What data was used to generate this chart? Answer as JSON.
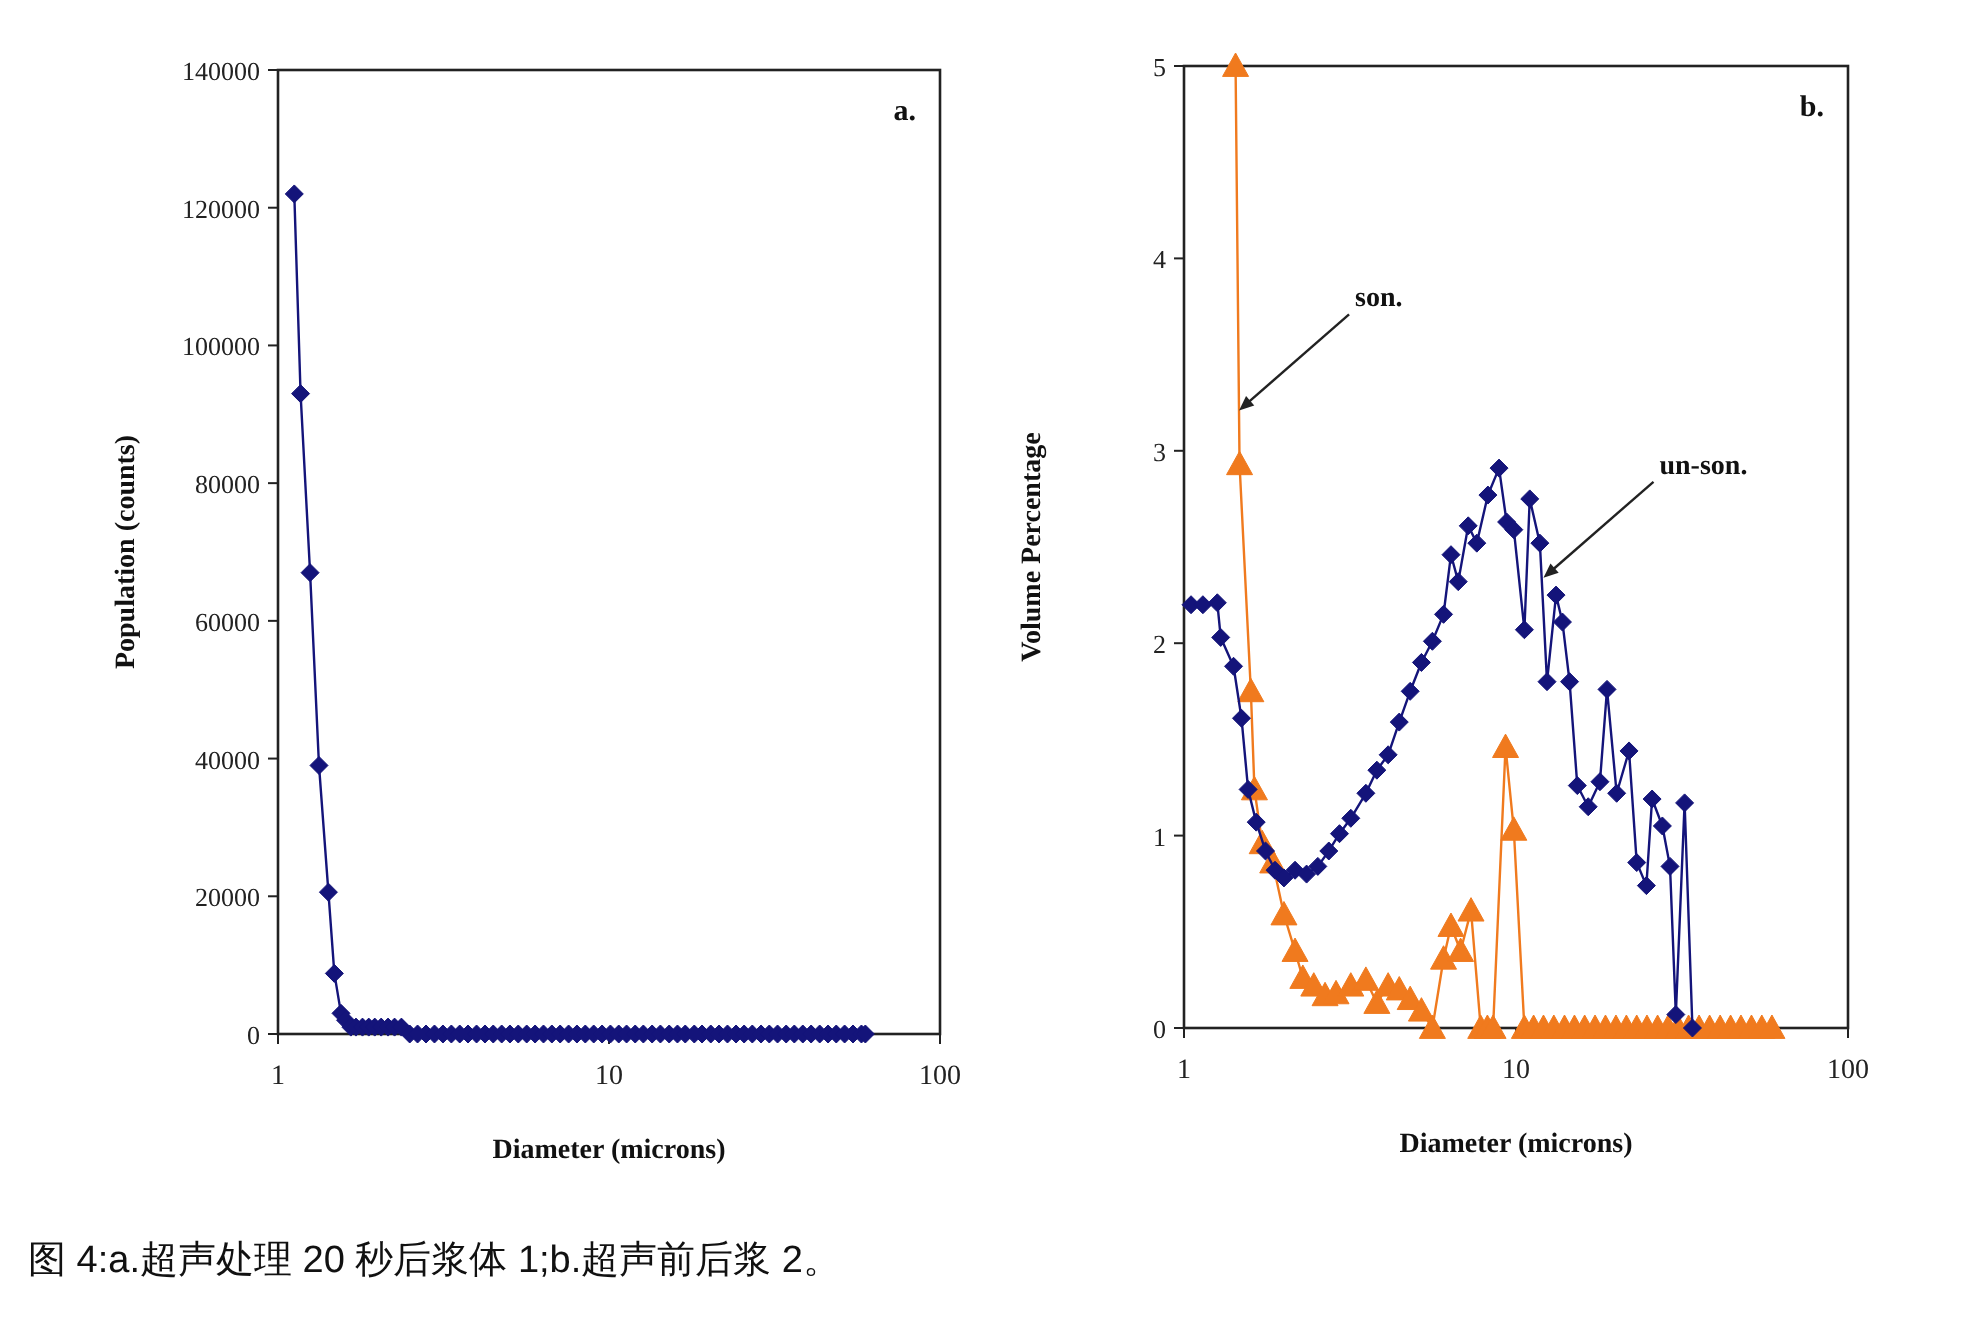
{
  "chart_data": [
    {
      "type": "line",
      "title": "a.",
      "xlabel": "Diameter (microns)",
      "ylabel": "Population (counts)",
      "log": "x",
      "xlim": [
        1,
        100
      ],
      "xticks": [
        1,
        10,
        100
      ],
      "ylim": [
        0,
        140000
      ],
      "yticks": [
        0,
        20000,
        40000,
        60000,
        80000,
        100000,
        120000,
        140000
      ],
      "grid": false,
      "marker": "diamond",
      "line_style": "solid",
      "series": [
        {
          "color": "#14147a",
          "x": [
            1.12,
            1.17,
            1.25,
            1.33,
            1.42,
            1.48,
            1.55,
            1.6,
            1.66,
            1.72,
            1.8,
            1.88,
            1.96,
            2.05,
            2.15,
            2.25,
            2.36,
            2.5,
            2.64,
            2.8,
            2.97,
            3.15,
            3.34,
            3.54,
            3.75,
            3.98,
            4.22,
            4.47,
            4.74,
            5.02,
            5.32,
            5.64,
            5.98,
            6.34,
            6.72,
            7.12,
            7.55,
            8.0,
            8.48,
            8.99,
            9.53,
            10.1,
            10.7,
            11.3,
            12.0,
            12.7,
            13.5,
            14.3,
            15.2,
            16.1,
            17.0,
            18.1,
            19.1,
            20.3,
            21.5,
            22.8,
            24.2,
            25.6,
            27.1,
            28.8,
            30.5,
            32.3,
            34.3,
            36.3,
            38.5,
            40.8,
            43.3,
            45.9,
            48.6,
            51.5,
            54.6,
            57.9,
            59.5
          ],
          "values": [
            122000,
            93000,
            67000,
            39000,
            20600,
            8800,
            3000,
            2000,
            1000,
            1000,
            1000,
            1000,
            1000,
            1000,
            1000,
            1000,
            1000,
            0,
            0,
            0,
            0,
            0,
            0,
            0,
            0,
            0,
            0,
            0,
            0,
            0,
            0,
            0,
            0,
            0,
            0,
            0,
            0,
            0,
            0,
            0,
            0,
            0,
            0,
            0,
            0,
            0,
            0,
            0,
            0,
            0,
            0,
            0,
            0,
            0,
            0,
            0,
            0,
            0,
            0,
            0,
            0,
            0,
            0,
            0,
            0,
            0,
            0,
            0,
            0,
            0,
            0,
            0,
            0
          ]
        }
      ]
    },
    {
      "type": "line",
      "title": "b.",
      "xlabel": "Diameter (microns)",
      "ylabel": "Volume Percentage",
      "log": "x",
      "xlim": [
        1,
        100
      ],
      "xticks": [
        1,
        10,
        100
      ],
      "ylim": [
        0,
        5
      ],
      "yticks": [
        0,
        1,
        2,
        3,
        4,
        5
      ],
      "grid": false,
      "line_style": "solid",
      "series": [
        {
          "color": "#f07a1e",
          "marker": "triangle",
          "x": [
            1.43,
            1.47,
            1.59,
            1.63,
            1.72,
            1.85,
            2.0,
            2.16,
            2.28,
            2.46,
            2.66,
            2.87,
            3.18,
            3.53,
            3.81,
            4.12,
            4.45,
            4.8,
            5.19,
            5.6,
            6.05,
            6.37,
            6.81,
            7.32,
            7.83,
            8.2,
            8.53,
            9.3,
            9.85,
            10.6,
            11.3,
            12.1,
            13.0,
            14.0,
            15.0,
            16.1,
            17.3,
            18.6,
            20.0,
            21.5,
            23.1,
            24.8,
            26.7,
            28.7,
            30.8,
            33.1,
            35.6,
            38.3,
            41.2,
            44.3,
            47.6,
            51.2,
            55.0,
            59.0
          ],
          "values": [
            5,
            2.93,
            1.75,
            1.24,
            0.96,
            0.86,
            0.59,
            0.4,
            0.26,
            0.22,
            0.17,
            0.18,
            0.22,
            0.25,
            0.13,
            0.22,
            0.2,
            0.15,
            0.09,
            0,
            0.36,
            0.53,
            0.4,
            0.61,
            0,
            0,
            0,
            1.46,
            1.03,
            0,
            0,
            0,
            0,
            0,
            0,
            0,
            0,
            0,
            0,
            0,
            0,
            0,
            0,
            0,
            0,
            0,
            0,
            0,
            0,
            0,
            0,
            0,
            0,
            0
          ]
        },
        {
          "color": "#14147a",
          "marker": "diamond",
          "x": [
            1.05,
            1.14,
            1.26,
            1.29,
            1.41,
            1.49,
            1.56,
            1.65,
            1.76,
            1.88,
            2.0,
            2.16,
            2.34,
            2.53,
            2.73,
            2.94,
            3.18,
            3.53,
            3.81,
            4.12,
            4.45,
            4.8,
            5.19,
            5.6,
            6.05,
            6.37,
            6.7,
            7.18,
            7.62,
            8.23,
            8.89,
            9.37,
            9.85,
            10.6,
            11.0,
            11.8,
            12.4,
            13.2,
            13.8,
            14.5,
            15.3,
            16.5,
            17.9,
            18.8,
            20.1,
            21.9,
            23.1,
            24.7,
            25.7,
            27.6,
            29.1,
            30.3,
            32.2,
            34.0
          ],
          "values": [
            2.2,
            2.2,
            2.21,
            2.03,
            1.88,
            1.61,
            1.24,
            1.07,
            0.92,
            0.82,
            0.78,
            0.82,
            0.8,
            0.84,
            0.92,
            1.01,
            1.09,
            1.22,
            1.34,
            1.42,
            1.59,
            1.75,
            1.9,
            2.01,
            2.15,
            2.46,
            2.32,
            2.61,
            2.52,
            2.77,
            2.91,
            2.63,
            2.59,
            2.07,
            2.75,
            2.52,
            1.8,
            2.25,
            2.11,
            1.8,
            1.26,
            1.15,
            1.28,
            1.76,
            1.22,
            1.44,
            0.86,
            0.74,
            1.19,
            1.05,
            0.84,
            0.07,
            1.17,
            0
          ]
        }
      ],
      "annotations": [
        {
          "text": "son.",
          "x": 1.465,
          "y": 3.21
        },
        {
          "text": "un-son.",
          "x": 12.1,
          "y": 2.34
        },
        "图 4:a.超声处理 20 秒后浆体 1;b.超声前后浆 2。"
      ]
    }
  ]
}
